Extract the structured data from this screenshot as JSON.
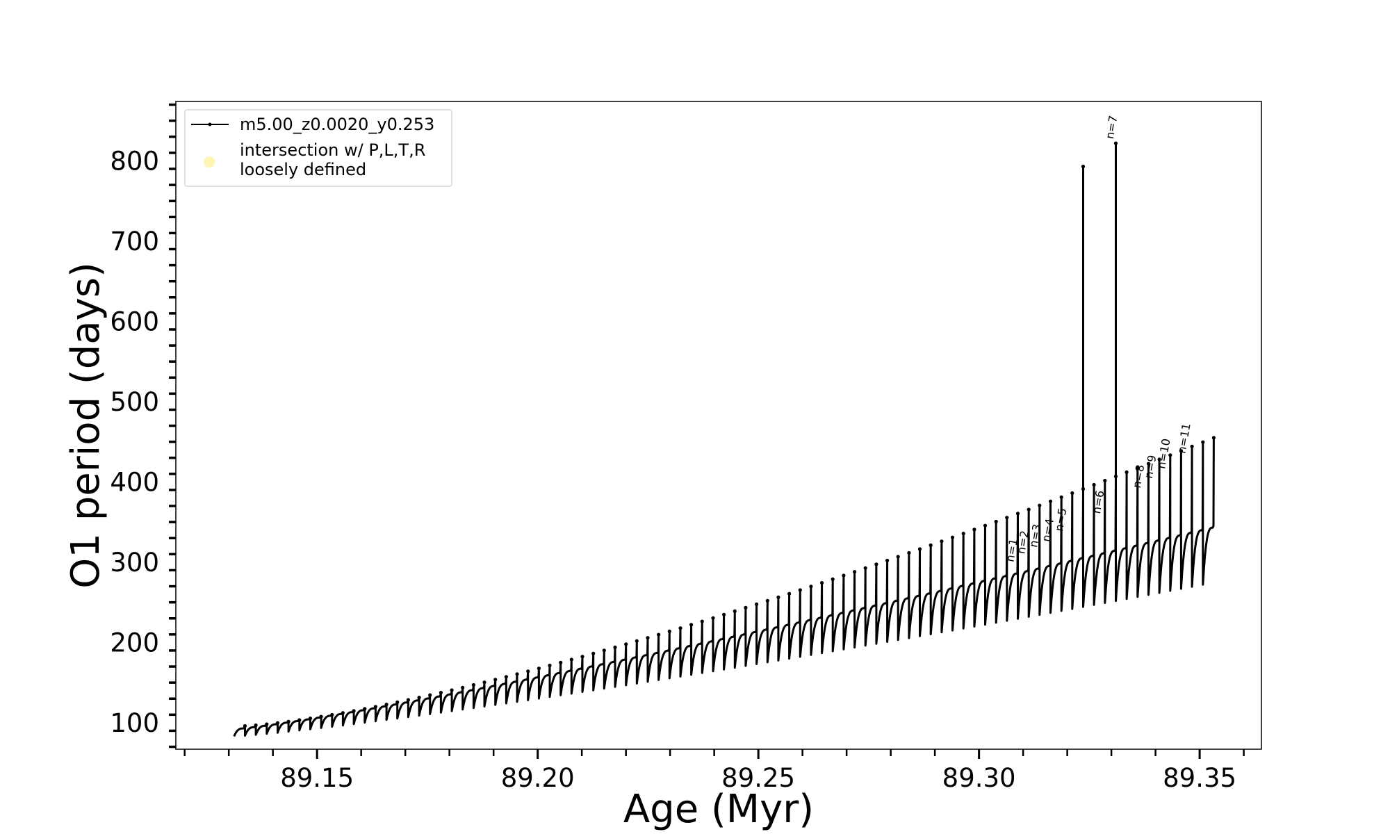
{
  "chart_data": {
    "type": "line",
    "xlabel": "Age (Myr)",
    "ylabel": "O1 period (days)",
    "xlim": [
      89.118,
      89.364
    ],
    "ylim": [
      67,
      874
    ],
    "x_ticks": [
      "89.15",
      "89.20",
      "89.25",
      "89.30",
      "89.35"
    ],
    "y_ticks": [
      "100",
      "200",
      "300",
      "400",
      "500",
      "600",
      "700",
      "800"
    ],
    "legend": {
      "placement": "upper-left",
      "entries": [
        {
          "label": "m5.00_z0.0020_y0.253",
          "marker": "line-dot",
          "color": "#000000"
        },
        {
          "label_lines": [
            "intersection w/ P,L,T,R",
            "loosely defined"
          ],
          "marker": "circle",
          "color": "#fff5b3"
        }
      ]
    },
    "series": [
      {
        "name": "m5.00_z0.0020_y0.253",
        "color": "#000000",
        "pulse_cycles": {
          "x_start": 89.1312,
          "x_end": 89.3532,
          "count": 90,
          "baseline_start": 93,
          "baseline_end": 343,
          "trough_start": 83,
          "trough_end": 272,
          "peak_start": 96,
          "peak_end": 455
        },
        "spikes": [
          {
            "x": 89.3245,
            "y": 793
          },
          {
            "x": 89.3301,
            "y": 822
          }
        ]
      }
    ],
    "annotations": [
      {
        "text": "n=1",
        "x": 89.3075,
        "y": 298
      },
      {
        "text": "n=2",
        "x": 89.31,
        "y": 308
      },
      {
        "text": "n=3",
        "x": 89.3128,
        "y": 316
      },
      {
        "text": "n=4",
        "x": 89.3157,
        "y": 323
      },
      {
        "text": "n=5",
        "x": 89.3186,
        "y": 336
      },
      {
        "text": "n=6",
        "x": 89.3271,
        "y": 358
      },
      {
        "text": "n=7",
        "x": 89.3301,
        "y": 825
      },
      {
        "text": "n=8",
        "x": 89.3362,
        "y": 390
      },
      {
        "text": "n=9",
        "x": 89.3389,
        "y": 402
      },
      {
        "text": "n=10",
        "x": 89.3418,
        "y": 414
      },
      {
        "text": "n=11",
        "x": 89.3464,
        "y": 433
      }
    ],
    "grid": false
  }
}
